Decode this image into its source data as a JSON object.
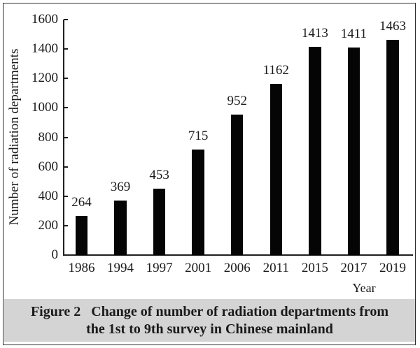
{
  "chart_data": {
    "type": "bar",
    "title": "",
    "categories": [
      "1986",
      "1994",
      "1997",
      "2001",
      "2006",
      "2011",
      "2015",
      "2017",
      "2019"
    ],
    "values": [
      264,
      369,
      453,
      715,
      952,
      1162,
      1413,
      1411,
      1463
    ],
    "xlabel": "Year",
    "ylabel": "Number of radiation departments",
    "ylim": [
      0,
      1600
    ],
    "ytick_step": 200,
    "ytick_labels": [
      "0",
      "200",
      "400",
      "600",
      "800",
      "1000",
      "1200",
      "1400",
      "1600"
    ],
    "bar_color": "#050505",
    "axis_color": "#1f1f1f",
    "grid": false,
    "legend": null,
    "data_labels_shown": true
  },
  "caption": {
    "line1": "Figure 2   Change of number of radiation departments from",
    "line2": "the 1st to 9th survey in Chinese mainland",
    "background_color": "#d4d4d4"
  }
}
